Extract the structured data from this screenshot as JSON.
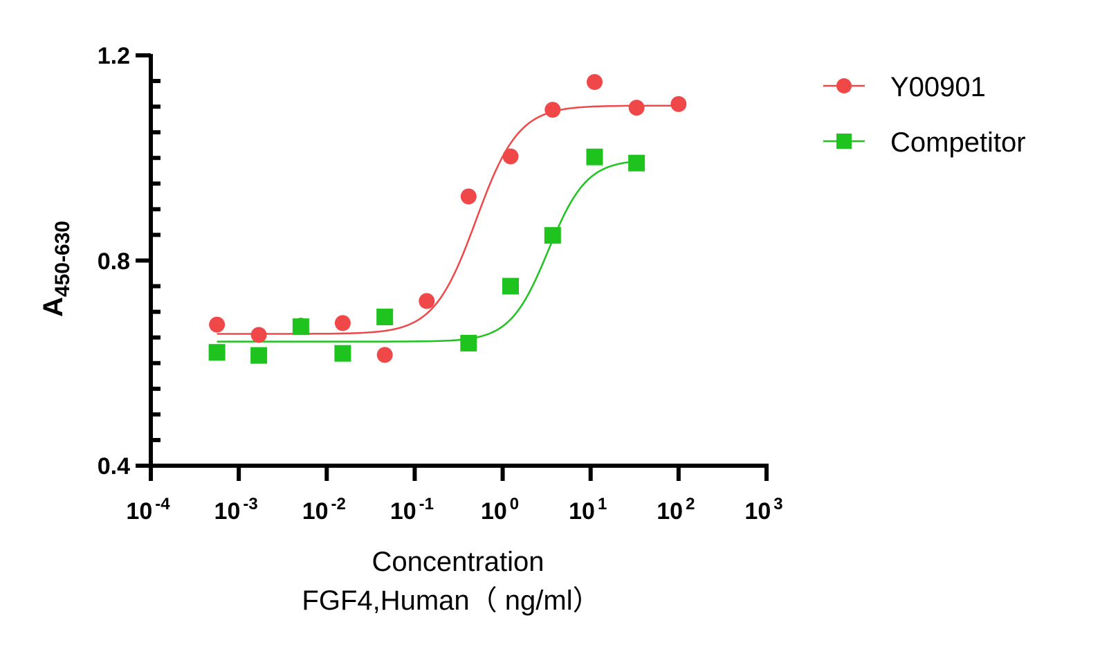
{
  "chart_data": {
    "type": "scatter",
    "xscale": "log",
    "xlim": [
      0.0001,
      1000
    ],
    "ylim": [
      0.4,
      1.2
    ],
    "xlabel": "Concentration",
    "xlabel2": "FGF4,Human（ ng/ml）",
    "ylabel_main": "A",
    "ylabel_sub": "450-630",
    "yticks": [
      "0.4",
      "0.8",
      "1.2"
    ],
    "ytick_values": [
      0.4,
      0.8,
      1.2
    ],
    "xtick_exponents": [
      "-4",
      "-3",
      "-2",
      "-1",
      "0",
      "1",
      "2",
      "3"
    ],
    "grid": false,
    "legend_position": "top-right",
    "series": [
      {
        "name": "Y00901",
        "color": "#f04848",
        "marker": "circle",
        "x": [
          0.000565,
          0.00169,
          0.00508,
          0.0152,
          0.0457,
          0.137,
          0.41,
          1.23,
          3.7,
          11.1,
          33.3,
          100
        ],
        "y": [
          0.675,
          0.655,
          0.673,
          0.678,
          0.616,
          0.721,
          0.925,
          1.003,
          1.094,
          1.148,
          1.098,
          1.105
        ],
        "fit": {
          "bottom": 0.657,
          "top": 1.102,
          "ec50": 0.5,
          "hill": 1.8
        }
      },
      {
        "name": "Competitor",
        "color": "#1ec31e",
        "marker": "square",
        "x": [
          0.000565,
          0.00169,
          0.00508,
          0.0152,
          0.0457,
          0.41,
          1.23,
          3.7,
          11.1,
          33.3
        ],
        "y": [
          0.621,
          0.615,
          0.671,
          0.619,
          0.69,
          0.639,
          0.75,
          0.849,
          1.002,
          0.99
        ],
        "fit": {
          "bottom": 0.642,
          "top": 0.997,
          "ec50": 3.3,
          "hill": 2.0
        }
      }
    ]
  }
}
